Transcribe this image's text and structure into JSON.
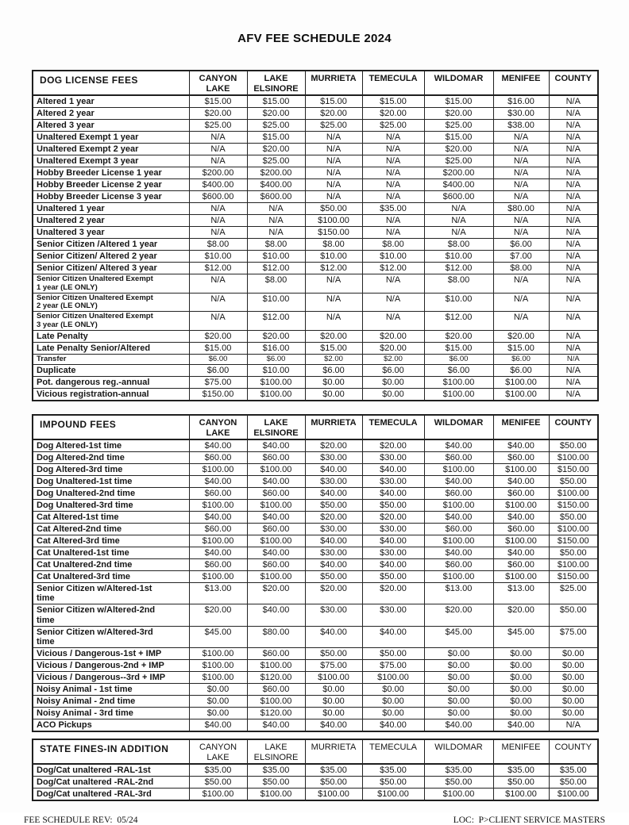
{
  "page": {
    "title": "AFV FEE SCHEDULE 2024",
    "footer": {
      "left": "FEE SCHEDULE REV:  05/24",
      "right": "LOC:  P>CLIENT SERVICE MASTERS"
    }
  },
  "columns": [
    "CANYON LAKE",
    "LAKE ELSINORE",
    "MURRIETA",
    "TEMECULA",
    "WILDOMAR",
    "MENIFEE",
    "COUNTY"
  ],
  "tables": [
    {
      "title": "DOG LICENSE FEES",
      "rows": [
        {
          "label": "Altered 1 year",
          "values": [
            "$15.00",
            "$15.00",
            "$15.00",
            "$15.00",
            "$15.00",
            "$16.00",
            "N/A"
          ]
        },
        {
          "label": "Altered 2 year",
          "values": [
            "$20.00",
            "$20.00",
            "$20.00",
            "$20.00",
            "$20.00",
            "$30.00",
            "N/A"
          ]
        },
        {
          "label": "Altered 3 year",
          "values": [
            "$25.00",
            "$25.00",
            "$25.00",
            "$25.00",
            "$25.00",
            "$38.00",
            "N/A"
          ]
        },
        {
          "label": "Unaltered Exempt 1 year",
          "values": [
            "N/A",
            "$15.00",
            "N/A",
            "N/A",
            "$15.00",
            "N/A",
            "N/A"
          ]
        },
        {
          "label": "Unaltered Exempt 2 year",
          "values": [
            "N/A",
            "$20.00",
            "N/A",
            "N/A",
            "$20.00",
            "N/A",
            "N/A"
          ]
        },
        {
          "label": "Unaltered Exempt 3 year",
          "values": [
            "N/A",
            "$25.00",
            "N/A",
            "N/A",
            "$25.00",
            "N/A",
            "N/A"
          ]
        },
        {
          "label": "Hobby Breeder License 1 year",
          "values": [
            "$200.00",
            "$200.00",
            "N/A",
            "N/A",
            "$200.00",
            "N/A",
            "N/A"
          ]
        },
        {
          "label": "Hobby Breeder License 2 year",
          "values": [
            "$400.00",
            "$400.00",
            "N/A",
            "N/A",
            "$400.00",
            "N/A",
            "N/A"
          ]
        },
        {
          "label": "Hobby Breeder License 3 year",
          "values": [
            "$600.00",
            "$600.00",
            "N/A",
            "N/A",
            "$600.00",
            "N/A",
            "N/A"
          ]
        },
        {
          "label": "Unaltered 1 year",
          "values": [
            "N/A",
            "N/A",
            "$50.00",
            "$35.00",
            "N/A",
            "$80.00",
            "N/A"
          ]
        },
        {
          "label": "Unaltered 2 year",
          "values": [
            "N/A",
            "N/A",
            "$100.00",
            "N/A",
            "N/A",
            "N/A",
            "N/A"
          ]
        },
        {
          "label": "Unaltered 3 year",
          "values": [
            "N/A",
            "N/A",
            "$150.00",
            "N/A",
            "N/A",
            "N/A",
            "N/A"
          ]
        },
        {
          "label": "Senior Citizen /Altered 1 year",
          "values": [
            "$8.00",
            "$8.00",
            "$8.00",
            "$8.00",
            "$8.00",
            "$6.00",
            "N/A"
          ]
        },
        {
          "label": "Senior Citizen/ Altered 2 year",
          "values": [
            "$10.00",
            "$10.00",
            "$10.00",
            "$10.00",
            "$10.00",
            "$7.00",
            "N/A"
          ]
        },
        {
          "label": "Senior Citizen/ Altered 3 year",
          "values": [
            "$12.00",
            "$12.00",
            "$12.00",
            "$12.00",
            "$12.00",
            "$8.00",
            "N/A"
          ]
        },
        {
          "label": "Senior Citizen Unaltered Exempt\n1 year (LE ONLY)",
          "style": "small-label",
          "values": [
            "N/A",
            "$8.00",
            "N/A",
            "N/A",
            "$8.00",
            "N/A",
            "N/A"
          ]
        },
        {
          "label": "Senior Citizen Unaltered Exempt\n2 year (LE ONLY)",
          "style": "small-label",
          "values": [
            "N/A",
            "$10.00",
            "N/A",
            "N/A",
            "$10.00",
            "N/A",
            "N/A"
          ]
        },
        {
          "label": "Senior Citizen Unaltered Exempt\n3 year (LE ONLY)",
          "style": "small-label",
          "values": [
            "N/A",
            "$12.00",
            "N/A",
            "N/A",
            "$12.00",
            "N/A",
            "N/A"
          ]
        },
        {
          "label": "Late Penalty",
          "values": [
            "$20.00",
            "$20.00",
            "$20.00",
            "$20.00",
            "$20.00",
            "$20.00",
            "N/A"
          ]
        },
        {
          "label": "Late Penalty Senior/Altered",
          "values": [
            "$15.00",
            "$16.00",
            "$15.00",
            "$20.00",
            "$15.00",
            "$15.00",
            "N/A"
          ]
        },
        {
          "label": "Transfer",
          "style": "small",
          "values": [
            "$6.00",
            "$6.00",
            "$2.00",
            "$2.00",
            "$6.00",
            "$6.00",
            "N/A"
          ]
        },
        {
          "label": "Duplicate",
          "values": [
            "$6.00",
            "$10.00",
            "$6.00",
            "$6.00",
            "$6.00",
            "$6.00",
            "N/A"
          ]
        },
        {
          "label": "Pot. dangerous reg.-annual",
          "values": [
            "$75.00",
            "$100.00",
            "$0.00",
            "$0.00",
            "$100.00",
            "$100.00",
            "N/A"
          ]
        },
        {
          "label": "Vicious registration-annual",
          "values": [
            "$150.00",
            "$100.00",
            "$0.00",
            "$0.00",
            "$100.00",
            "$100.00",
            "N/A"
          ]
        }
      ]
    },
    {
      "title": "IMPOUND FEES",
      "rows": [
        {
          "label": "Dog Altered-1st time",
          "values": [
            "$40.00",
            "$40.00",
            "$20.00",
            "$20.00",
            "$40.00",
            "$40.00",
            "$50.00"
          ]
        },
        {
          "label": "Dog Altered-2nd time",
          "values": [
            "$60.00",
            "$60.00",
            "$30.00",
            "$30.00",
            "$60.00",
            "$60.00",
            "$100.00"
          ]
        },
        {
          "label": "Dog Altered-3rd time",
          "values": [
            "$100.00",
            "$100.00",
            "$40.00",
            "$40.00",
            "$100.00",
            "$100.00",
            "$150.00"
          ]
        },
        {
          "label": "Dog Unaltered-1st time",
          "values": [
            "$40.00",
            "$40.00",
            "$30.00",
            "$30.00",
            "$40.00",
            "$40.00",
            "$50.00"
          ]
        },
        {
          "label": "Dog Unaltered-2nd time",
          "values": [
            "$60.00",
            "$60.00",
            "$40.00",
            "$40.00",
            "$60.00",
            "$60.00",
            "$100.00"
          ]
        },
        {
          "label": "Dog Unaltered-3rd time",
          "values": [
            "$100.00",
            "$100.00",
            "$50.00",
            "$50.00",
            "$100.00",
            "$100.00",
            "$150.00"
          ]
        },
        {
          "label": "Cat Altered-1st time",
          "values": [
            "$40.00",
            "$40.00",
            "$20.00",
            "$20.00",
            "$40.00",
            "$40.00",
            "$50.00"
          ]
        },
        {
          "label": "Cat Altered-2nd time",
          "values": [
            "$60.00",
            "$60.00",
            "$30.00",
            "$30.00",
            "$60.00",
            "$60.00",
            "$100.00"
          ]
        },
        {
          "label": "Cat Altered-3rd time",
          "values": [
            "$100.00",
            "$100.00",
            "$40.00",
            "$40.00",
            "$100.00",
            "$100.00",
            "$150.00"
          ]
        },
        {
          "label": "Cat Unaltered-1st time",
          "values": [
            "$40.00",
            "$40.00",
            "$30.00",
            "$30.00",
            "$40.00",
            "$40.00",
            "$50.00"
          ]
        },
        {
          "label": "Cat Unaltered-2nd time",
          "values": [
            "$60.00",
            "$60.00",
            "$40.00",
            "$40.00",
            "$60.00",
            "$60.00",
            "$100.00"
          ]
        },
        {
          "label": "Cat Unaltered-3rd time",
          "values": [
            "$100.00",
            "$100.00",
            "$50.00",
            "$50.00",
            "$100.00",
            "$100.00",
            "$150.00"
          ]
        },
        {
          "label": "Senior Citizen w/Altered-1st\ntime",
          "values": [
            "$13.00",
            "$20.00",
            "$20.00",
            "$20.00",
            "$13.00",
            "$13.00",
            "$25.00"
          ]
        },
        {
          "label": "Senior Citizen w/Altered-2nd\ntime",
          "values": [
            "$20.00",
            "$40.00",
            "$30.00",
            "$30.00",
            "$20.00",
            "$20.00",
            "$50.00"
          ]
        },
        {
          "label": "Senior Citizen w/Altered-3rd\ntime",
          "values": [
            "$45.00",
            "$80.00",
            "$40.00",
            "$40.00",
            "$45.00",
            "$45.00",
            "$75.00"
          ]
        },
        {
          "label": "Vicious / Dangerous-1st + IMP",
          "values": [
            "$100.00",
            "$60.00",
            "$50.00",
            "$50.00",
            "$0.00",
            "$0.00",
            "$0.00"
          ]
        },
        {
          "label": "Vicious / Dangerous-2nd + IMP",
          "values": [
            "$100.00",
            "$100.00",
            "$75.00",
            "$75.00",
            "$0.00",
            "$0.00",
            "$0.00"
          ]
        },
        {
          "label": "Vicious / Dangerous--3rd + IMP",
          "values": [
            "$100.00",
            "$120.00",
            "$100.00",
            "$100.00",
            "$0.00",
            "$0.00",
            "$0.00"
          ]
        },
        {
          "label": "Noisy Animal - 1st time",
          "values": [
            "$0.00",
            "$60.00",
            "$0.00",
            "$0.00",
            "$0.00",
            "$0.00",
            "$0.00"
          ]
        },
        {
          "label": "Noisy Animal - 2nd time",
          "values": [
            "$0.00",
            "$100.00",
            "$0.00",
            "$0.00",
            "$0.00",
            "$0.00",
            "$0.00"
          ]
        },
        {
          "label": "Noisy Animal - 3rd time",
          "values": [
            "$0.00",
            "$120.00",
            "$0.00",
            "$0.00",
            "$0.00",
            "$0.00",
            "$0.00"
          ]
        },
        {
          "label": "ACO Pickups",
          "values": [
            "$40.00",
            "$40.00",
            "$40.00",
            "$40.00",
            "$40.00",
            "$40.00",
            "N/A"
          ]
        }
      ]
    },
    {
      "title": "STATE FINES-IN ADDITION",
      "rows": [
        {
          "label": "Dog/Cat unaltered -RAL-1st",
          "values": [
            "$35.00",
            "$35.00",
            "$35.00",
            "$35.00",
            "$35.00",
            "$35.00",
            "$35.00"
          ]
        },
        {
          "label": "Dog/Cat unaltered -RAL-2nd",
          "values": [
            "$50.00",
            "$50.00",
            "$50.00",
            "$50.00",
            "$50.00",
            "$50.00",
            "$50.00"
          ]
        },
        {
          "label": "Dog/Cat unaltered -RAL-3rd",
          "values": [
            "$100.00",
            "$100.00",
            "$100.00",
            "$100.00",
            "$100.00",
            "$100.00",
            "$100.00"
          ]
        }
      ]
    }
  ]
}
